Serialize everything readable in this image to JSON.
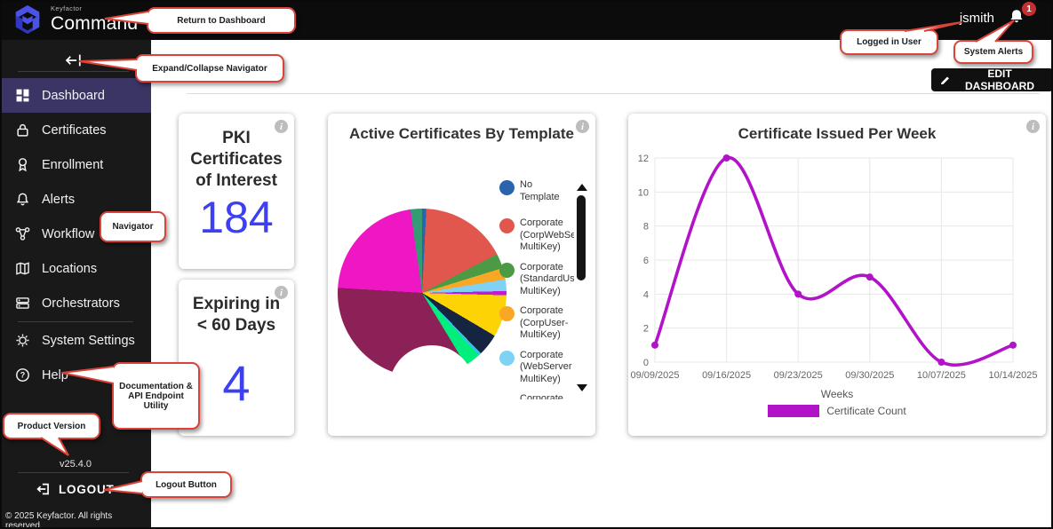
{
  "topbar": {
    "brand_small": "Keyfactor",
    "brand_large": "Command",
    "username": "jsmith",
    "alert_count": "1"
  },
  "sidebar": {
    "items": [
      {
        "label": "Dashboard",
        "icon": "dashboard-icon",
        "active": true
      },
      {
        "label": "Certificates",
        "icon": "lock-icon",
        "active": false
      },
      {
        "label": "Enrollment",
        "icon": "ribbon-icon",
        "active": false
      },
      {
        "label": "Alerts",
        "icon": "bell-icon",
        "active": false
      },
      {
        "label": "Workflow",
        "icon": "workflow-icon",
        "active": false
      },
      {
        "label": "Locations",
        "icon": "map-icon",
        "active": false
      },
      {
        "label": "Orchestrators",
        "icon": "server-icon",
        "active": false
      },
      {
        "label": "System Settings",
        "icon": "gear-icon",
        "active": false
      },
      {
        "label": "Help",
        "icon": "help-icon",
        "active": false
      }
    ],
    "version": "v25.4.0",
    "logout_label": "LOGOUT",
    "copyright": "© 2025 Keyfactor. All rights reserved."
  },
  "header": {
    "edit_dashboard_label": "EDIT DASHBOARD"
  },
  "cards": {
    "pki": {
      "title": "PKI Certificates of Interest",
      "value": "184"
    },
    "expiring": {
      "title": "Expiring in < 60 Days",
      "value": "4"
    }
  },
  "annotations": {
    "return_to_dashboard": "Return to Dashboard",
    "expand_collapse": "Expand/Collapse Navigator",
    "navigator": "Navigator",
    "logged_in_user": "Logged in User",
    "system_alerts": "System Alerts",
    "documentation": "Documentation & API Endpoint Utility",
    "product_version": "Product Version",
    "logout_button": "Logout Button"
  },
  "chart_data": [
    {
      "type": "pie",
      "donut": true,
      "title": "Active Certificates By Template",
      "legend_position": "right",
      "segments": [
        {
          "label": "No Template",
          "color": "#2b64ad",
          "value": 0.8
        },
        {
          "label": "Corporate (CorpWebSe MultiKey)",
          "color": "#e2574d",
          "value": 16.5
        },
        {
          "label": "Corporate (StandardUs MultiKey)",
          "color": "#4d9a44",
          "value": 2.8
        },
        {
          "label": "Corporate (CorpUser-MultiKey)",
          "color": "#f9a825",
          "value": 2.2
        },
        {
          "label": "Corporate (WebServer MultiKey)",
          "color": "#7fd2f4",
          "value": 2.2
        },
        {
          "label": "",
          "color": "#c517d8",
          "value": 0.8
        },
        {
          "label": "",
          "color": "#fdd305",
          "value": 8
        },
        {
          "label": "",
          "color": "#152441",
          "value": 4.2
        },
        {
          "label": "",
          "color": "#2fc4e0",
          "value": 0.6
        },
        {
          "label": "",
          "color": "#00ef7c",
          "value": 3
        },
        {
          "label": "",
          "color": "#8c2158",
          "value": 34.4
        },
        {
          "label": "",
          "color": "#ef16c3",
          "value": 21.7
        },
        {
          "label": "",
          "color": "#349b72",
          "value": 2.2
        }
      ],
      "legend_visible_lines": [
        {
          "color": "#2b64ad",
          "lines": [
            "No",
            "Template"
          ]
        },
        {
          "color": "#e2574d",
          "lines": [
            "Corporate",
            "(CorpWebSe",
            "MultiKey)"
          ]
        },
        {
          "color": "#4d9a44",
          "lines": [
            "Corporate",
            "(StandardUs",
            "MultiKey)"
          ]
        },
        {
          "color": "#f9a825",
          "lines": [
            "Corporate",
            "(CorpUser-",
            "MultiKey)"
          ]
        },
        {
          "color": "#7fd2f4",
          "lines": [
            "Corporate",
            "(WebServer",
            "MultiKey)"
          ]
        },
        {
          "color": "",
          "lines": [
            "Corporate"
          ]
        }
      ]
    },
    {
      "type": "line",
      "title": "Certificate Issued Per Week",
      "x": [
        "09/09/2025",
        "09/16/2025",
        "09/23/2025",
        "09/30/2025",
        "10/07/2025",
        "10/14/2025"
      ],
      "y": [
        1,
        12,
        4,
        5,
        0,
        1
      ],
      "xlabel": "Weeks",
      "legend": [
        "Certificate Count"
      ],
      "line_color": "#b213c9",
      "ylim": [
        0,
        12
      ],
      "ytick_step": 2,
      "grid": true
    }
  ]
}
